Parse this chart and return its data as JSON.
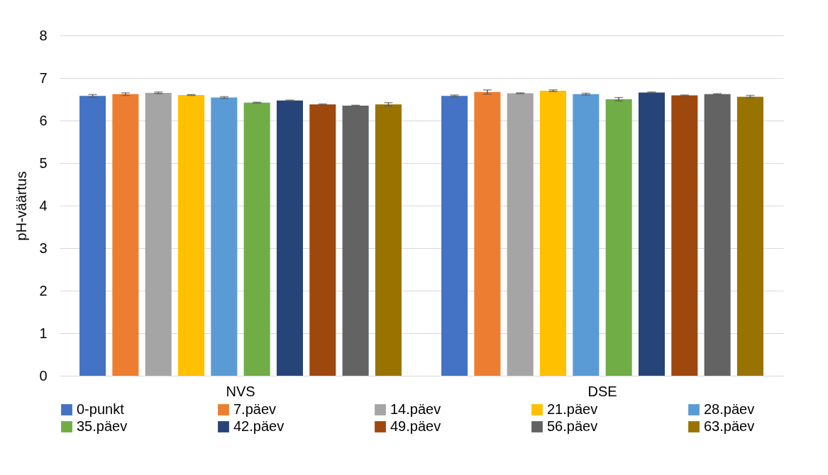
{
  "chart_data": {
    "type": "bar",
    "ylabel": "pH-väärtus",
    "categories": [
      "NVS",
      "DSE"
    ],
    "ylim": [
      0,
      8
    ],
    "yticks": [
      0,
      1,
      2,
      3,
      4,
      5,
      6,
      7,
      8
    ],
    "grid": "y",
    "legend": "bottom",
    "series": [
      {
        "name": "0-punkt",
        "color": "#4472c4",
        "values": [
          6.58,
          6.58
        ],
        "errors": [
          0.03,
          0.02
        ]
      },
      {
        "name": "7.päev",
        "color": "#ed7d31",
        "values": [
          6.62,
          6.67
        ],
        "errors": [
          0.03,
          0.05
        ]
      },
      {
        "name": "14.päev",
        "color": "#a5a5a5",
        "values": [
          6.65,
          6.64
        ],
        "errors": [
          0.02,
          0.01
        ]
      },
      {
        "name": "21.päev",
        "color": "#ffc000",
        "values": [
          6.6,
          6.7
        ],
        "errors": [
          0.01,
          0.02
        ]
      },
      {
        "name": "28.päev",
        "color": "#5b9bd5",
        "values": [
          6.54,
          6.62
        ],
        "errors": [
          0.02,
          0.02
        ]
      },
      {
        "name": "35.päev",
        "color": "#70ad47",
        "values": [
          6.42,
          6.5
        ],
        "errors": [
          0.01,
          0.04
        ]
      },
      {
        "name": "42.päev",
        "color": "#264478",
        "values": [
          6.47,
          6.66
        ],
        "errors": [
          0.01,
          0.01
        ]
      },
      {
        "name": "49.päev",
        "color": "#9e480e",
        "values": [
          6.38,
          6.59
        ],
        "errors": [
          0.01,
          0.01
        ]
      },
      {
        "name": "56.päev",
        "color": "#636363",
        "values": [
          6.35,
          6.62
        ],
        "errors": [
          0.01,
          0.01
        ]
      },
      {
        "name": "63.päev",
        "color": "#997300",
        "values": [
          6.38,
          6.56
        ],
        "errors": [
          0.04,
          0.03
        ]
      }
    ]
  }
}
